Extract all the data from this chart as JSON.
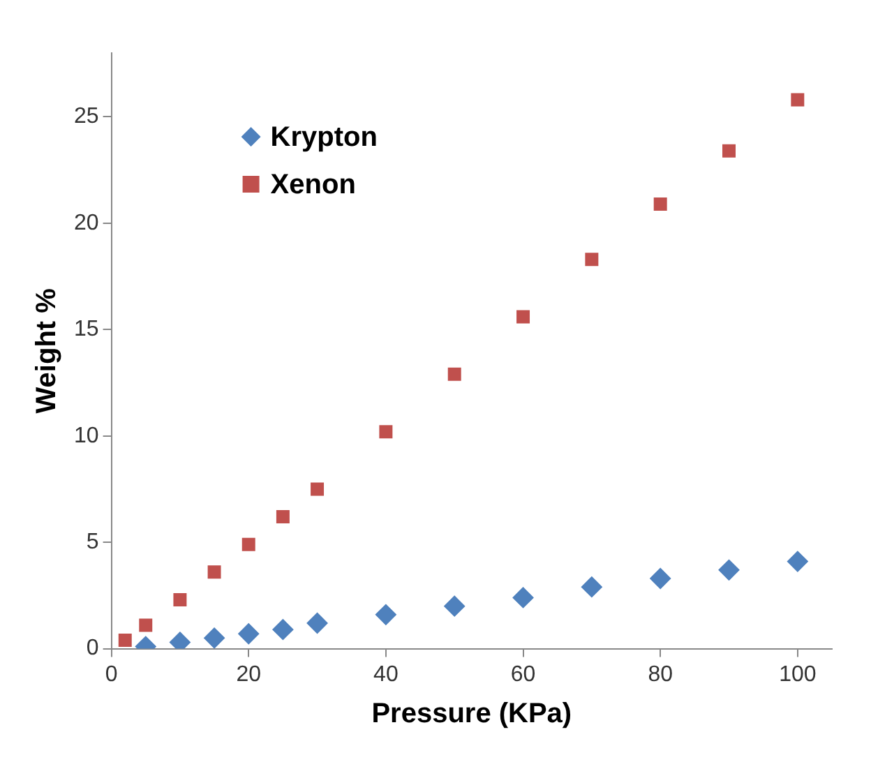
{
  "chart_data": {
    "type": "scatter",
    "xlabel": "Pressure (KPa)",
    "ylabel": "Weight %",
    "xlim": [
      0,
      105
    ],
    "ylim": [
      0,
      28
    ],
    "xticks": [
      0,
      20,
      40,
      60,
      80,
      100
    ],
    "yticks": [
      0,
      5,
      10,
      15,
      20,
      25
    ],
    "grid": false,
    "legend": "top left",
    "series": [
      {
        "name": "Krypton",
        "color": "#4f81bd",
        "marker": "diamond",
        "x": [
          5,
          10,
          15,
          20,
          25,
          30,
          40,
          50,
          60,
          70,
          80,
          90,
          100
        ],
        "values": [
          0.1,
          0.3,
          0.5,
          0.7,
          0.9,
          1.2,
          1.6,
          2.0,
          2.4,
          2.9,
          3.3,
          3.7,
          4.1
        ]
      },
      {
        "name": "Xenon",
        "color": "#c0504d",
        "marker": "square",
        "x": [
          2,
          5,
          10,
          15,
          20,
          25,
          30,
          40,
          50,
          60,
          70,
          80,
          90,
          100
        ],
        "values": [
          0.4,
          1.1,
          2.3,
          3.6,
          4.9,
          6.2,
          7.5,
          10.2,
          12.9,
          15.6,
          18.3,
          20.9,
          23.4,
          25.8
        ]
      }
    ]
  }
}
